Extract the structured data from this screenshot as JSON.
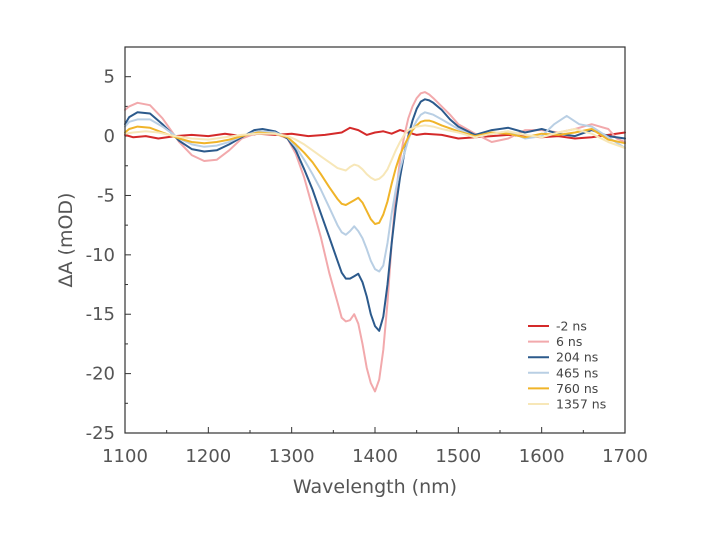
{
  "chart_data": {
    "type": "line",
    "xlabel": "Wavelength (nm)",
    "ylabel": "ΔA (mOD)",
    "xlim": [
      1100,
      1700
    ],
    "ylim": [
      -25,
      7.5
    ],
    "xticks": [
      1100,
      1200,
      1300,
      1400,
      1500,
      1600,
      1700
    ],
    "yticks": [
      5,
      0,
      -5,
      -10,
      -15,
      -20,
      -25
    ],
    "x_minor_step": 50,
    "y_minor_step": 2.5,
    "grid": false,
    "legend_position": "lower-right",
    "series": [
      {
        "name": "-2 ns",
        "color": "#d42a2a",
        "x": [
          1100,
          1110,
          1125,
          1140,
          1160,
          1180,
          1200,
          1220,
          1240,
          1260,
          1280,
          1300,
          1320,
          1340,
          1360,
          1370,
          1380,
          1390,
          1400,
          1410,
          1420,
          1430,
          1440,
          1450,
          1460,
          1480,
          1500,
          1520,
          1540,
          1560,
          1580,
          1600,
          1620,
          1640,
          1660,
          1680,
          1700
        ],
        "y": [
          0.1,
          -0.1,
          0.0,
          -0.2,
          0.0,
          0.1,
          0.0,
          0.2,
          0.0,
          0.2,
          0.1,
          0.2,
          0.0,
          0.1,
          0.3,
          0.7,
          0.5,
          0.1,
          0.3,
          0.4,
          0.2,
          0.5,
          0.3,
          0.1,
          0.2,
          0.1,
          -0.2,
          -0.1,
          0.0,
          0.1,
          0.0,
          -0.1,
          0.0,
          -0.2,
          -0.1,
          0.1,
          0.3
        ]
      },
      {
        "name": "6 ns",
        "color": "#f2a9ac",
        "x": [
          1100,
          1105,
          1115,
          1130,
          1145,
          1165,
          1180,
          1195,
          1210,
          1225,
          1240,
          1260,
          1280,
          1295,
          1305,
          1315,
          1325,
          1335,
          1345,
          1355,
          1360,
          1365,
          1370,
          1375,
          1380,
          1385,
          1390,
          1395,
          1400,
          1405,
          1410,
          1415,
          1420,
          1425,
          1430,
          1435,
          1440,
          1445,
          1450,
          1455,
          1460,
          1465,
          1470,
          1480,
          1490,
          1500,
          1520,
          1540,
          1560,
          1580,
          1600,
          1620,
          1640,
          1660,
          1680,
          1690,
          1700
        ],
        "y": [
          2.2,
          2.5,
          2.8,
          2.6,
          1.5,
          -0.5,
          -1.6,
          -2.1,
          -2.0,
          -1.2,
          -0.2,
          0.3,
          0.2,
          -0.2,
          -1.5,
          -3.5,
          -6.0,
          -8.5,
          -11.5,
          -14.0,
          -15.3,
          -15.6,
          -15.5,
          -15.0,
          -15.8,
          -17.5,
          -19.5,
          -20.8,
          -21.5,
          -20.5,
          -18.0,
          -14.0,
          -9.0,
          -5.0,
          -2.0,
          0.0,
          1.5,
          2.5,
          3.2,
          3.6,
          3.7,
          3.5,
          3.2,
          2.5,
          1.8,
          1.0,
          0.2,
          -0.5,
          -0.2,
          0.5,
          0.5,
          0.3,
          0.6,
          1.0,
          0.6,
          -0.2,
          -0.5
        ]
      },
      {
        "name": "204 ns",
        "color": "#2c5a8c",
        "x": [
          1100,
          1105,
          1115,
          1130,
          1145,
          1165,
          1180,
          1195,
          1210,
          1225,
          1240,
          1255,
          1265,
          1280,
          1295,
          1305,
          1315,
          1325,
          1335,
          1345,
          1355,
          1360,
          1365,
          1370,
          1375,
          1380,
          1385,
          1390,
          1395,
          1400,
          1405,
          1410,
          1415,
          1420,
          1425,
          1430,
          1435,
          1440,
          1445,
          1450,
          1455,
          1460,
          1465,
          1470,
          1480,
          1490,
          1500,
          1520,
          1540,
          1560,
          1580,
          1600,
          1620,
          1640,
          1660,
          1680,
          1700
        ],
        "y": [
          1.0,
          1.6,
          2.0,
          1.9,
          1.0,
          -0.4,
          -1.1,
          -1.3,
          -1.2,
          -0.7,
          -0.1,
          0.5,
          0.6,
          0.4,
          -0.2,
          -1.2,
          -2.8,
          -4.5,
          -6.5,
          -8.5,
          -10.5,
          -11.5,
          -12.0,
          -12.0,
          -11.8,
          -11.6,
          -12.3,
          -13.5,
          -15.0,
          -16.0,
          -16.4,
          -15.2,
          -12.5,
          -9.0,
          -6.0,
          -3.5,
          -1.5,
          0.0,
          1.3,
          2.3,
          2.9,
          3.1,
          3.0,
          2.8,
          2.2,
          1.4,
          0.8,
          0.1,
          0.5,
          0.7,
          0.3,
          0.6,
          0.2,
          0.0,
          0.5,
          0.0,
          -0.2
        ]
      },
      {
        "name": "465 ns",
        "color": "#b9cfe4",
        "x": [
          1100,
          1105,
          1115,
          1130,
          1145,
          1165,
          1180,
          1195,
          1210,
          1225,
          1240,
          1260,
          1280,
          1295,
          1305,
          1315,
          1325,
          1335,
          1345,
          1355,
          1360,
          1365,
          1370,
          1375,
          1380,
          1385,
          1390,
          1395,
          1400,
          1405,
          1410,
          1415,
          1420,
          1425,
          1430,
          1435,
          1440,
          1445,
          1450,
          1455,
          1460,
          1465,
          1470,
          1480,
          1500,
          1520,
          1540,
          1560,
          1580,
          1600,
          1615,
          1630,
          1645,
          1660,
          1680,
          1700
        ],
        "y": [
          0.8,
          1.2,
          1.4,
          1.4,
          0.8,
          -0.2,
          -0.7,
          -0.9,
          -0.8,
          -0.5,
          0.0,
          0.4,
          0.3,
          -0.1,
          -0.9,
          -2.0,
          -3.2,
          -4.5,
          -6.0,
          -7.5,
          -8.1,
          -8.3,
          -8.0,
          -7.6,
          -8.0,
          -8.6,
          -9.5,
          -10.5,
          -11.2,
          -11.4,
          -10.9,
          -9.0,
          -6.5,
          -4.5,
          -2.8,
          -1.5,
          -0.3,
          0.6,
          1.3,
          1.8,
          2.0,
          1.9,
          1.8,
          1.4,
          0.6,
          -0.1,
          0.2,
          0.4,
          -0.2,
          0.0,
          1.0,
          1.7,
          1.0,
          0.8,
          -0.1,
          -1.0
        ]
      },
      {
        "name": "760 ns",
        "color": "#f0b429",
        "x": [
          1100,
          1105,
          1115,
          1130,
          1145,
          1165,
          1180,
          1195,
          1210,
          1225,
          1240,
          1260,
          1280,
          1295,
          1305,
          1315,
          1325,
          1335,
          1345,
          1355,
          1360,
          1365,
          1370,
          1375,
          1380,
          1385,
          1390,
          1395,
          1400,
          1405,
          1410,
          1415,
          1420,
          1425,
          1430,
          1435,
          1440,
          1445,
          1450,
          1455,
          1460,
          1465,
          1470,
          1480,
          1500,
          1520,
          1540,
          1560,
          1580,
          1600,
          1620,
          1640,
          1660,
          1680,
          1700
        ],
        "y": [
          0.3,
          0.6,
          0.8,
          0.7,
          0.3,
          -0.2,
          -0.5,
          -0.6,
          -0.5,
          -0.3,
          0.0,
          0.3,
          0.2,
          -0.1,
          -0.7,
          -1.4,
          -2.2,
          -3.2,
          -4.3,
          -5.3,
          -5.7,
          -5.8,
          -5.6,
          -5.4,
          -5.2,
          -5.6,
          -6.3,
          -7.0,
          -7.4,
          -7.3,
          -6.6,
          -5.5,
          -4.0,
          -2.7,
          -1.6,
          -0.8,
          -0.1,
          0.5,
          0.9,
          1.2,
          1.3,
          1.3,
          1.2,
          0.9,
          0.4,
          0.0,
          0.3,
          0.2,
          -0.1,
          0.2,
          0.1,
          0.3,
          0.6,
          -0.3,
          -0.6
        ]
      },
      {
        "name": "1357 ns",
        "color": "#f7e7b8",
        "x": [
          1100,
          1110,
          1125,
          1140,
          1160,
          1180,
          1200,
          1220,
          1240,
          1260,
          1280,
          1295,
          1305,
          1315,
          1325,
          1335,
          1345,
          1355,
          1365,
          1370,
          1375,
          1380,
          1385,
          1390,
          1395,
          1400,
          1405,
          1410,
          1415,
          1420,
          1425,
          1430,
          1435,
          1440,
          1450,
          1460,
          1470,
          1480,
          1500,
          1520,
          1540,
          1560,
          1580,
          1600,
          1620,
          1640,
          1660,
          1680,
          1700
        ],
        "y": [
          0.2,
          0.3,
          0.4,
          0.3,
          0.0,
          -0.2,
          -0.3,
          -0.1,
          0.1,
          0.2,
          0.2,
          0.0,
          -0.3,
          -0.7,
          -1.2,
          -1.7,
          -2.2,
          -2.7,
          -2.9,
          -2.6,
          -2.4,
          -2.5,
          -2.8,
          -3.2,
          -3.5,
          -3.7,
          -3.6,
          -3.3,
          -2.8,
          -2.0,
          -1.2,
          -0.5,
          0.1,
          0.5,
          0.8,
          0.9,
          0.8,
          0.6,
          0.3,
          -0.1,
          0.2,
          0.4,
          0.1,
          -0.1,
          0.3,
          0.6,
          0.2,
          -0.5,
          -1.0
        ]
      }
    ]
  }
}
